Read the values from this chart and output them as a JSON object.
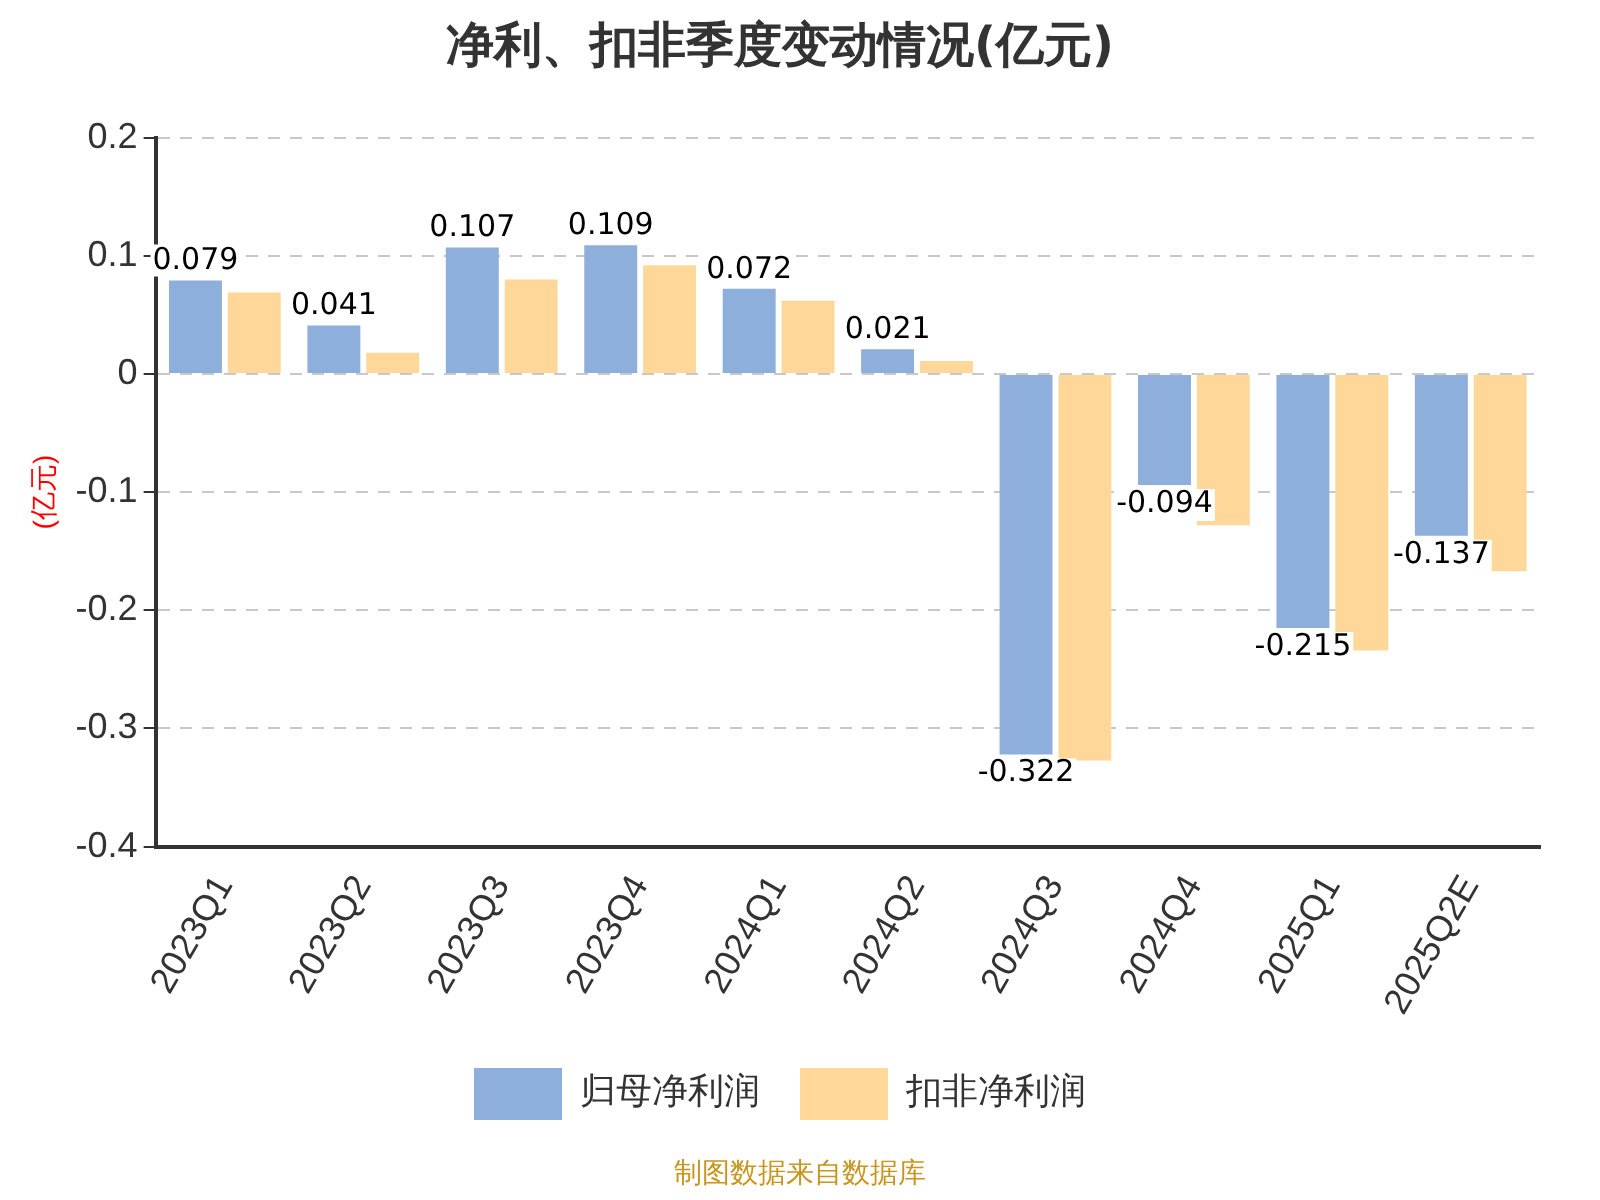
{
  "chart_data": {
    "type": "bar",
    "title": "净利、扣非季度变动情况(亿元)",
    "ylabel": "(亿元)",
    "categories": [
      "2023Q1",
      "2023Q2",
      "2023Q3",
      "2023Q4",
      "2024Q1",
      "2024Q2",
      "2024Q3",
      "2024Q4",
      "2025Q1",
      "2025Q2E"
    ],
    "series": [
      {
        "name": "归母净利润",
        "color": "#8eaedb",
        "values": [
          0.079,
          0.041,
          0.107,
          0.109,
          0.072,
          0.021,
          -0.322,
          -0.094,
          -0.215,
          -0.137
        ],
        "value_labels": [
          "0.079",
          "0.041",
          "0.107",
          "0.109",
          "0.072",
          "0.021",
          "-0.322",
          "-0.094",
          "-0.215",
          "-0.137"
        ]
      },
      {
        "name": "扣非净利润",
        "color": "#ffd899",
        "values": [
          0.069,
          0.018,
          0.08,
          0.092,
          0.062,
          0.011,
          -0.327,
          -0.128,
          -0.234,
          -0.167
        ]
      }
    ],
    "ylim": [
      -0.4,
      0.2
    ],
    "yticks": [
      -0.4,
      -0.3,
      -0.2,
      -0.1,
      0,
      0.1,
      0.2
    ],
    "grid": "y",
    "legend": "bottom",
    "annotations": [
      "制图数据来自数据库"
    ]
  }
}
